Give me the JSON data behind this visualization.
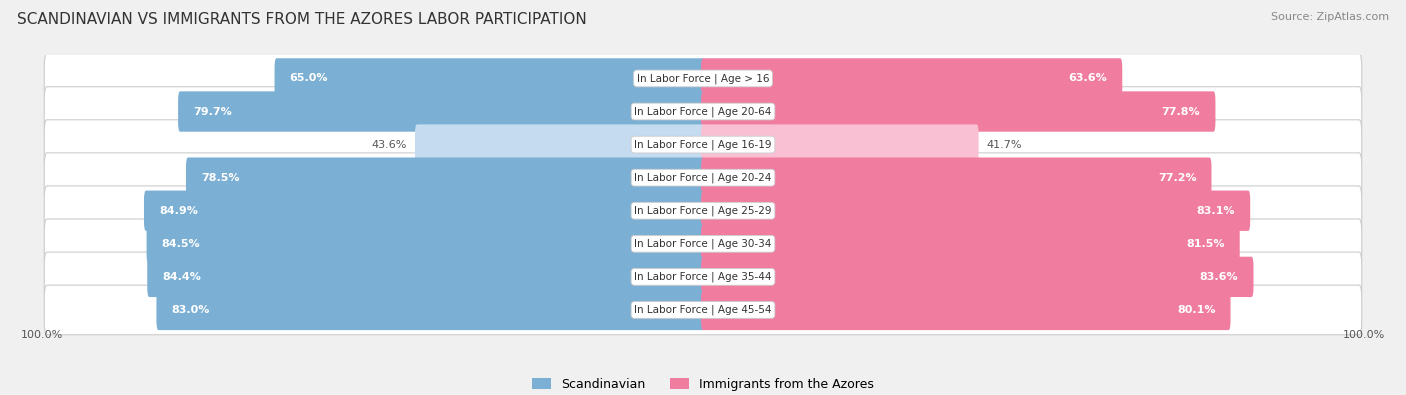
{
  "title": "SCANDINAVIAN VS IMMIGRANTS FROM THE AZORES LABOR PARTICIPATION",
  "source": "Source: ZipAtlas.com",
  "categories": [
    "In Labor Force | Age > 16",
    "In Labor Force | Age 20-64",
    "In Labor Force | Age 16-19",
    "In Labor Force | Age 20-24",
    "In Labor Force | Age 25-29",
    "In Labor Force | Age 30-34",
    "In Labor Force | Age 35-44",
    "In Labor Force | Age 45-54"
  ],
  "scandinavian_values": [
    65.0,
    79.7,
    43.6,
    78.5,
    84.9,
    84.5,
    84.4,
    83.0
  ],
  "azores_values": [
    63.6,
    77.8,
    41.7,
    77.2,
    83.1,
    81.5,
    83.6,
    80.1
  ],
  "scandinavian_color": "#7BAFD4",
  "azores_color": "#F07CA0",
  "scandinavian_light_color": "#C5DCF0",
  "azores_light_color": "#F9C0D4",
  "low_threshold": 50.0,
  "background_color": "#f0f0f0",
  "row_bg_color": "#e8e8e8",
  "legend_scand": "Scandinavian",
  "legend_azores": "Immigrants from the Azores",
  "bar_height": 0.7,
  "title_fontsize": 11,
  "label_fontsize": 8.0,
  "cat_fontsize": 7.5
}
